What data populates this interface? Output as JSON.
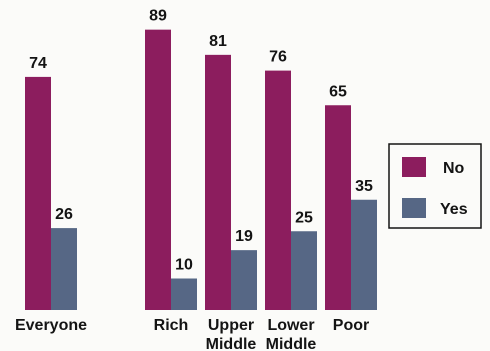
{
  "chart_data": {
    "type": "bar",
    "title": "",
    "xlabel": "",
    "ylabel": "",
    "categories": [
      [
        "Everyone"
      ],
      [
        "Rich"
      ],
      [
        "Upper",
        "Middle"
      ],
      [
        "Lower",
        "Middle"
      ],
      [
        "Poor"
      ]
    ],
    "series": [
      {
        "name": "No",
        "color": "#8c1d5e",
        "values": [
          74,
          89,
          81,
          76,
          65
        ]
      },
      {
        "name": "Yes",
        "color": "#566785",
        "values": [
          26,
          10,
          19,
          25,
          35
        ]
      }
    ],
    "ylim": [
      0,
      100
    ],
    "grid": false,
    "legend_position": "right"
  }
}
